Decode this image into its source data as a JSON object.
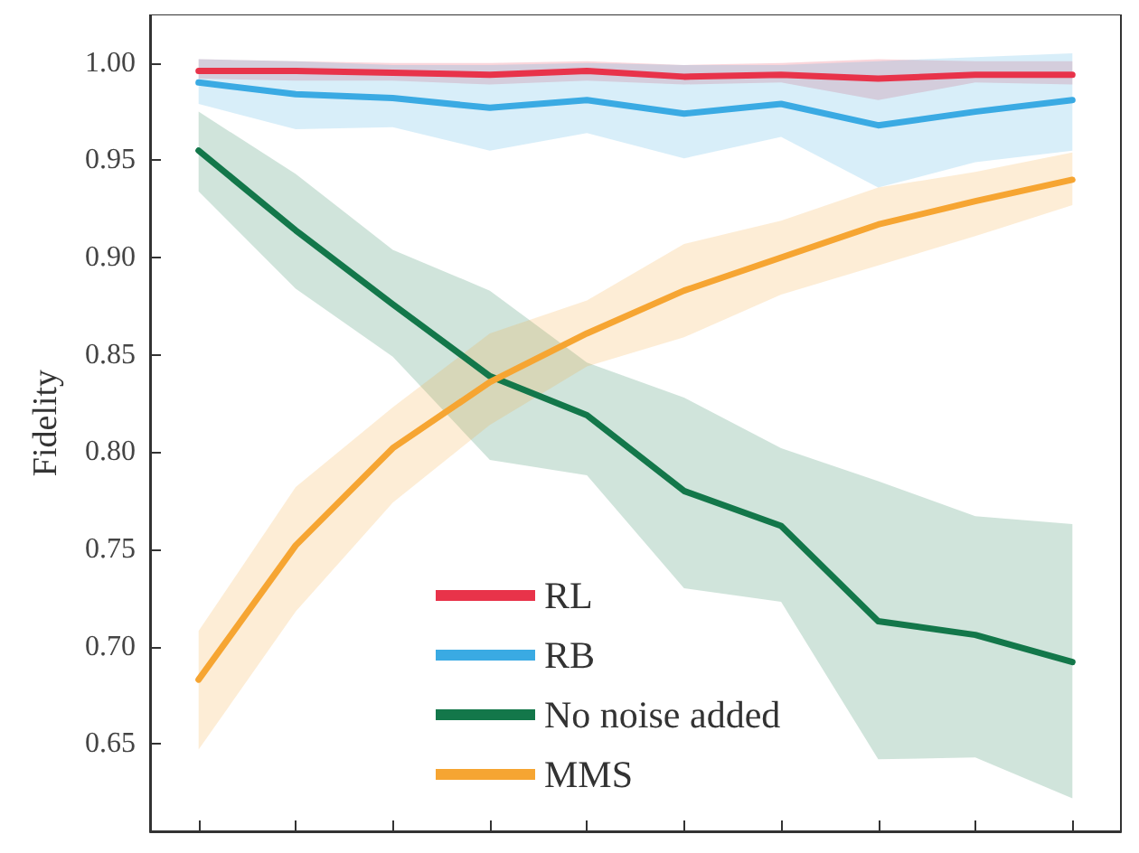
{
  "chart_data": {
    "type": "line",
    "ylabel": "Fidelity",
    "categories": [
      null,
      null,
      null,
      null,
      null,
      null,
      null,
      null,
      null,
      null
    ],
    "ylim": [
      0.605,
      1.025
    ],
    "yticks": [
      {
        "value": 0.65,
        "label": "0.65"
      },
      {
        "value": 0.7,
        "label": "0.70"
      },
      {
        "value": 0.75,
        "label": "0.75"
      },
      {
        "value": 0.8,
        "label": "0.80"
      },
      {
        "value": 0.85,
        "label": "0.85"
      },
      {
        "value": 0.9,
        "label": "0.90"
      },
      {
        "value": 0.95,
        "label": "0.95"
      },
      {
        "value": 1.0,
        "label": "1.00"
      }
    ],
    "tick_labels": "y",
    "grid": false,
    "legend": "bottom",
    "marker": "none",
    "line_style": "solid",
    "series": [
      {
        "name": "RL",
        "color": "#e8334a",
        "values": [
          0.996,
          0.996,
          0.995,
          0.994,
          0.996,
          0.993,
          0.994,
          0.992,
          0.994,
          0.994
        ],
        "lower": [
          0.992,
          0.991,
          0.991,
          0.989,
          0.991,
          0.989,
          0.99,
          0.981,
          0.99,
          0.989
        ],
        "upper": [
          1.002,
          1.001,
          1.0,
          1.0,
          1.001,
          0.999,
          1.0,
          1.002,
          1.001,
          1.001
        ]
      },
      {
        "name": "RB",
        "color": "#3aaae3",
        "values": [
          0.99,
          0.984,
          0.982,
          0.977,
          0.981,
          0.974,
          0.979,
          0.968,
          0.975,
          0.981
        ],
        "lower": [
          0.979,
          0.966,
          0.967,
          0.955,
          0.964,
          0.951,
          0.962,
          0.936,
          0.949,
          0.955
        ],
        "upper": [
          1.002,
          1.001,
          0.999,
          0.999,
          1.0,
          0.999,
          0.999,
          1.001,
          1.003,
          1.005
        ]
      },
      {
        "name": "No noise added",
        "color": "#13774a",
        "values": [
          0.955,
          0.914,
          0.876,
          0.839,
          0.819,
          0.78,
          0.762,
          0.713,
          0.706,
          0.692
        ],
        "lower": [
          0.934,
          0.884,
          0.849,
          0.796,
          0.788,
          0.73,
          0.723,
          0.642,
          0.643,
          0.622
        ],
        "upper": [
          0.975,
          0.943,
          0.904,
          0.883,
          0.846,
          0.828,
          0.802,
          0.785,
          0.767,
          0.763
        ]
      },
      {
        "name": "MMS",
        "color": "#f6a532",
        "values": [
          0.683,
          0.752,
          0.802,
          0.836,
          0.861,
          0.883,
          0.9,
          0.917,
          0.929,
          0.94
        ],
        "lower": [
          0.647,
          0.718,
          0.774,
          0.814,
          0.844,
          0.859,
          0.881,
          0.896,
          0.911,
          0.927
        ],
        "upper": [
          0.708,
          0.782,
          0.823,
          0.861,
          0.878,
          0.907,
          0.919,
          0.936,
          0.944,
          0.954
        ]
      }
    ]
  }
}
